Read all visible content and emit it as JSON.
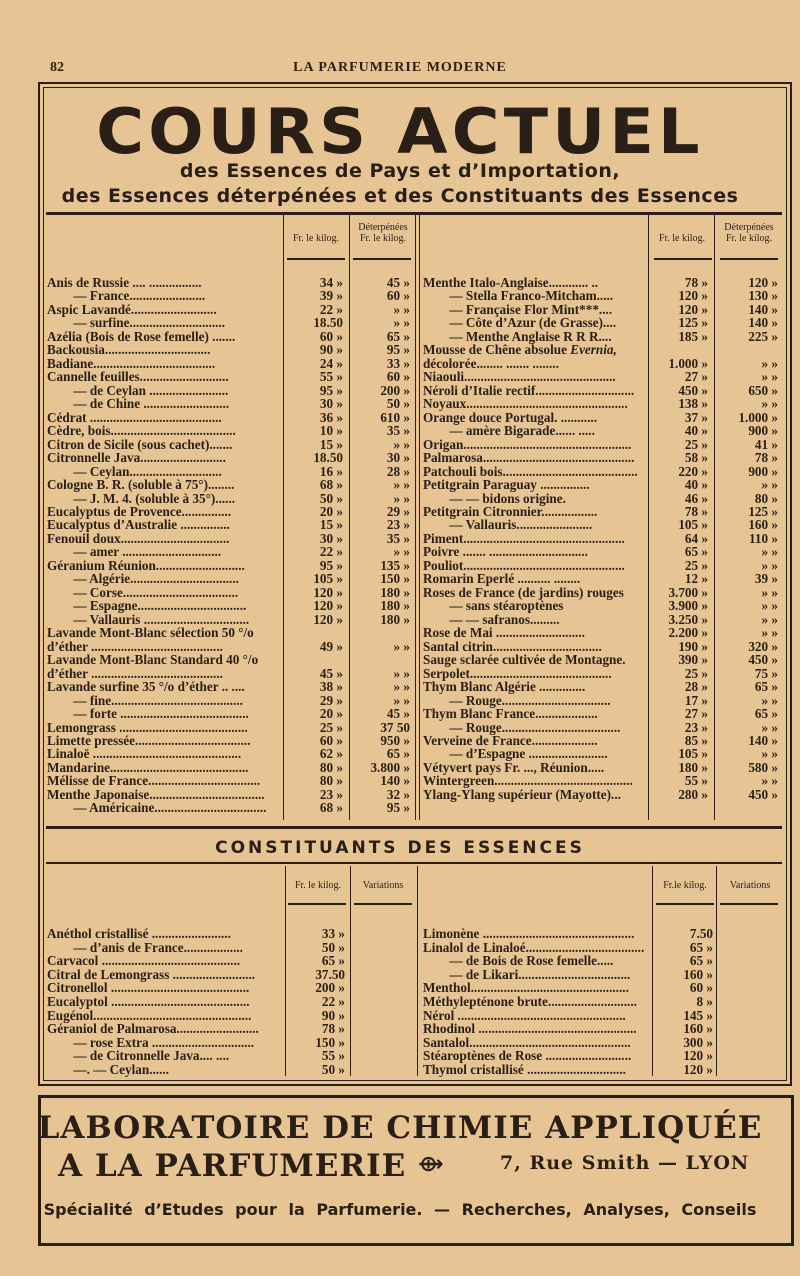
{
  "header": {
    "page_number": "82",
    "running_title": "LA PARFUMERIE MODERNE"
  },
  "title": "COURS ACTUEL",
  "subtitle_line1": "des Essences de Pays et d’Importation,",
  "subtitle_line2": "des Essences déterpénées et des Constituants des Essences",
  "essences": {
    "col_price": "Fr. le kilog.",
    "col_det_1": "Déterpénées",
    "col_det_2": "Fr. le kilog.",
    "left": [
      [
        "Anis de Russie .... ................",
        "34 »",
        "45 »"
      ],
      [
        "   —   France.......................",
        "39 »",
        "60 »"
      ],
      [
        "Aspic Lavandé..........................",
        "22 »",
        "» »"
      ],
      [
        "   —   surfine.............................",
        "18.50",
        "» »"
      ],
      [
        "Azélia (Bois de Rose femelle) .......",
        "60 »",
        "65 »"
      ],
      [
        "Backousia................................",
        "90 »",
        "95 »"
      ],
      [
        "Badiane.....................................",
        "24 »",
        "33 »"
      ],
      [
        "Cannelle feuilles...........................",
        "55 »",
        "60 »"
      ],
      [
        "   —   de Ceylan ........................",
        "95 »",
        "200 »"
      ],
      [
        "   —   de Chine ..........................",
        "30 »",
        "50 »"
      ],
      [
        "Cédrat ........................................",
        "36 »",
        "610 »"
      ],
      [
        "Cèdre, bois......................................",
        "10 »",
        "35 »"
      ],
      [
        "Citron de Sicile (sous cachet).......",
        "15 »",
        "» »"
      ],
      [
        "Citronnelle Java..........................",
        "18.50",
        "30 »"
      ],
      [
        "   —   Ceylan............................",
        "16 »",
        "28 »"
      ],
      [
        "Cologne B. R. (soluble à 75°)........",
        "68 »",
        "» »"
      ],
      [
        "   —   J. M. 4. (soluble à 35°)......",
        "50 »",
        "» »"
      ],
      [
        "Eucalyptus de Provence...............",
        "20 »",
        "29 »"
      ],
      [
        "Eucalyptus d’Australie ...............",
        "15 »",
        "23 »"
      ],
      [
        "Fenouil doux.................................",
        "30 »",
        "35 »"
      ],
      [
        "   —   amer ..............................",
        "22 »",
        "» »"
      ],
      [
        "Géranium Réunion...........................",
        "95 »",
        "135 »"
      ],
      [
        "   —   Algérie.................................",
        "105 »",
        "150 »"
      ],
      [
        "   —   Corse...................................",
        "120 »",
        "180 »"
      ],
      [
        "   —   Espagne.................................",
        "120 »",
        "180 »"
      ],
      [
        "   —   Vallauris ................................",
        "120 »",
        "180 »"
      ],
      [
        "Lavande Mont-Blanc sélection 50 °/o",
        "",
        ""
      ],
      [
        "  d’éther ........................................",
        "49 »",
        "» »"
      ],
      [
        "Lavande Mont-Blanc Standard 40 °/o",
        "",
        ""
      ],
      [
        "  d’éther ........................................",
        "45 »",
        "» »"
      ],
      [
        "Lavande surfine 35 °/o d’éther .. ....",
        "38 »",
        "» »"
      ],
      [
        "   —   fine........................................",
        "29 »",
        "» »"
      ],
      [
        "   —   forte .......................................",
        "20 »",
        "45 »"
      ],
      [
        "Lemongrass .......................................",
        "25 »",
        "37 50"
      ],
      [
        "Limette pressée...................................",
        "60 »",
        "950 »"
      ],
      [
        "Linaloë .............................................",
        "62 »",
        "65 »"
      ],
      [
        "Mandarine..........................................",
        "80 »",
        "3.800 »"
      ],
      [
        "Mélisse de France..................................",
        "80 »",
        "140 »"
      ],
      [
        "Menthe Japonaise...................................",
        "23 »",
        "32 »"
      ],
      [
        "   —   Américaine..................................",
        "68 »",
        "95 »"
      ]
    ],
    "right": [
      [
        "Menthe Italo-Anglaise............ ..",
        "78 »",
        "120 »"
      ],
      [
        "   —   Stella Franco-Mitcham.....",
        "120 »",
        "130 »"
      ],
      [
        "   —   Française Flor Mint***....",
        "120 »",
        "140 »"
      ],
      [
        "   —   Côte d’Azur (de Grasse)....",
        "125 »",
        "140 »"
      ],
      [
        "   —   Menthe Anglaise R R R....",
        "185 »",
        "225 »"
      ],
      [
        "Mousse de Chêne absolue Evernia,",
        "",
        ""
      ],
      [
        "  décolorée........ ....... ........",
        "1.000 »",
        "» »"
      ],
      [
        "Niaouli..............................................",
        "27 »",
        "» »"
      ],
      [
        "Néroli d’Italie rectif..............................",
        "450 »",
        "650 »"
      ],
      [
        "Noyaux.................................................",
        "138 »",
        "» »"
      ],
      [
        "Orange douce Portugal. ...........",
        "37 »",
        "1.000 »"
      ],
      [
        "   —   amère Bigarade...... .....",
        "40 »",
        "900 »"
      ],
      [
        "Origan...................................................",
        "25 »",
        "41 »"
      ],
      [
        "Palmarosa..............................................",
        "58 »",
        "78 »"
      ],
      [
        "Patchouli bois.........................................",
        "220 »",
        "900 »"
      ],
      [
        "Petitgrain Paraguay ...............",
        "40 »",
        "» »"
      ],
      [
        "   —        —        bidons origine.",
        "46 »",
        "80 »"
      ],
      [
        "Petitgrain Citronnier.................",
        "78 »",
        "125 »"
      ],
      [
        "   —   Vallauris.......................",
        "105 »",
        "160 »"
      ],
      [
        "Piment.................................................",
        "64 »",
        "110 »"
      ],
      [
        "Poivre ....... ..............................",
        "65 »",
        "» »"
      ],
      [
        "Pouliot.................................................",
        "25 »",
        "» »"
      ],
      [
        "Romarin Eperlé .......... ........",
        "12 »",
        "39 »"
      ],
      [
        "Roses de France (de jardins) rouges",
        "3.700 »",
        "» »"
      ],
      [
        "   —              sans stéaroptènes",
        "3.900 »",
        "» »"
      ],
      [
        "   —        —        safranos.........",
        "3.250 »",
        "» »"
      ],
      [
        "Rose de Mai ...........................",
        "2.200 »",
        "» »"
      ],
      [
        "Santal citrin.................................",
        "190 »",
        "320 »"
      ],
      [
        "Sauge sclarée cultivée de Montagne.",
        "390 »",
        "450 »"
      ],
      [
        "Serpolet...........................................",
        "25 »",
        "75 »"
      ],
      [
        "Thym Blanc Algérie ..............",
        "28 »",
        "65 »"
      ],
      [
        "   —   Rouge.................................",
        "17 »",
        "» »"
      ],
      [
        "Thym Blanc France...................",
        "27 »",
        "65 »"
      ],
      [
        "   —   Rouge....................................",
        "23 »",
        "» »"
      ],
      [
        "Verveine de France....................",
        "85 »",
        "140 »"
      ],
      [
        "   —   d’Espagne ........................",
        "105 »",
        "» »"
      ],
      [
        "Vétyvert pays Fr. ..., Réunion.....",
        "180 »",
        "580 »"
      ],
      [
        "Wintergreen..........................................",
        "55 »",
        "» »"
      ],
      [
        "Ylang-Ylang supérieur (Mayotte)...",
        "280 »",
        "450 »"
      ]
    ]
  },
  "constituants": {
    "heading": "CONSTITUANTS DES ESSENCES",
    "col_price_left": "Fr. le kilog.",
    "col_price_right": "Fr.le kilog.",
    "col_var": "Variations",
    "left": [
      [
        "Anéthol cristallisé ........................",
        "33 »",
        ""
      ],
      [
        "   —   d’anis de France..................",
        "50 »",
        ""
      ],
      [
        "Carvacol ..........................................",
        "65 »",
        ""
      ],
      [
        "Citral de Lemongrass .........................",
        "37.50",
        ""
      ],
      [
        "Citronellol ..........................................",
        "200 »",
        ""
      ],
      [
        "Eucalyptol ..........................................",
        "22 »",
        ""
      ],
      [
        "Eugénol................................................",
        "90 »",
        ""
      ],
      [
        "Géraniol de Palmarosa.........................",
        "78 »",
        ""
      ],
      [
        "   —   rose Extra ...............................",
        "150 »",
        ""
      ],
      [
        "   —   de Citronnelle Java.... ....",
        "55 »",
        ""
      ],
      [
        "   —.        —        Ceylan......",
        "50 »",
        ""
      ]
    ],
    "right": [
      [
        "Limonène ..............................................",
        "7.50",
        ""
      ],
      [
        "Linalol de Linaloé....................................",
        "65 »",
        ""
      ],
      [
        "   —   de Bois de Rose femelle.....",
        "65 »",
        ""
      ],
      [
        "   —   de Likari..................................",
        "160 »",
        ""
      ],
      [
        "Menthol................................................",
        "60 »",
        ""
      ],
      [
        "Méthylepténone brute...........................",
        "8 »",
        ""
      ],
      [
        "Nérol ...................................................",
        "145 »",
        ""
      ],
      [
        "Rhodinol ................................................",
        "160 »",
        ""
      ],
      [
        "Santalol.................................................",
        "300 »",
        ""
      ],
      [
        "Stéaroptènes de Rose ..........................",
        "120 »",
        ""
      ],
      [
        "Thymol cristallisé ..............................",
        "120 »",
        ""
      ]
    ]
  },
  "advert": {
    "line1": "LABORATOIRE DE CHIMIE APPLIQUÉE",
    "line2_name": "A LA PARFUMERIE",
    "line2_ornament": "⟴",
    "line2_address": "7, Rue Smith — LYON",
    "line3": "Spécialité d’Etudes pour la Parfumerie. — Recherches, Analyses, Conseils"
  },
  "colors": {
    "paper": "#e6c494",
    "ink": "#2a1f16"
  }
}
